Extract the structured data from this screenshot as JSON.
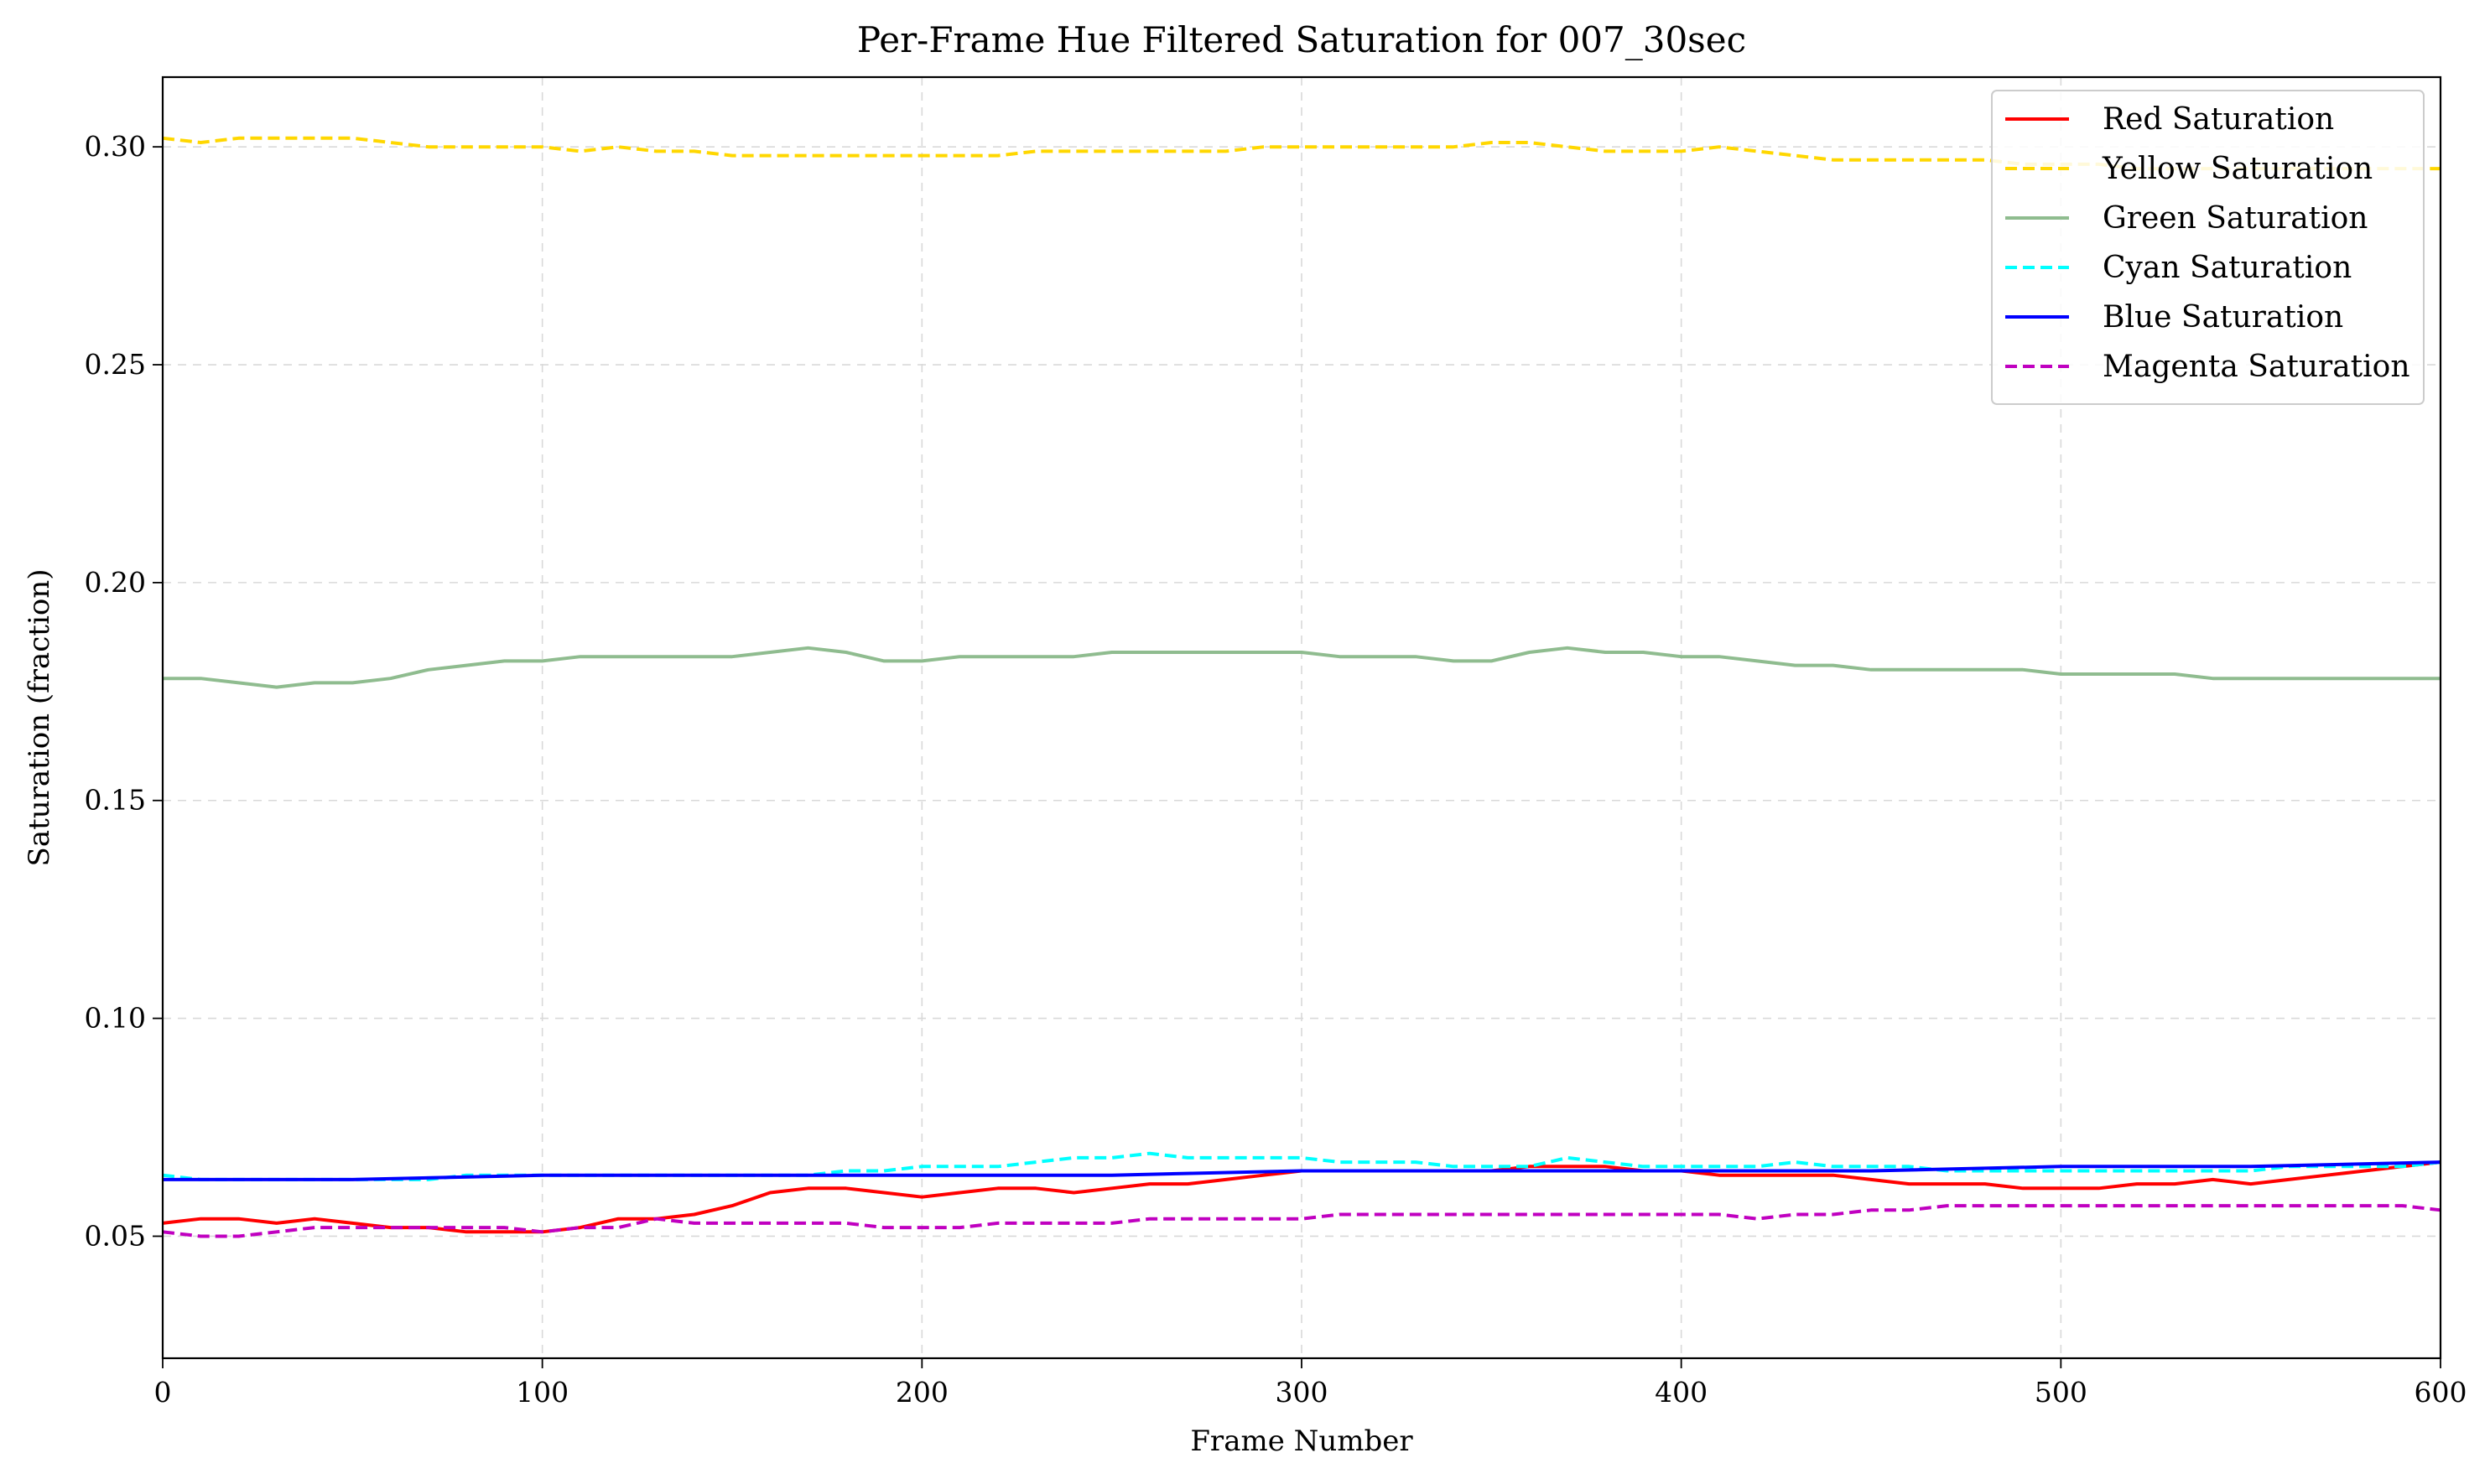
{
  "chart_data": {
    "type": "line",
    "title": "Per-Frame Hue Filtered Saturation for 007_30sec",
    "xlabel": "Frame Number",
    "ylabel": "Saturation (fraction)",
    "xlim": [
      0,
      600
    ],
    "ylim": [
      0.022,
      0.316
    ],
    "xticks": [
      0,
      100,
      200,
      300,
      400,
      500,
      600
    ],
    "yticks": [
      0.05,
      0.1,
      0.15,
      0.2,
      0.25,
      0.3
    ],
    "ytick_labels": [
      "0.05",
      "0.10",
      "0.15",
      "0.20",
      "0.25",
      "0.30"
    ],
    "grid": true,
    "legend_position": "top-right",
    "series": [
      {
        "name": "Red Saturation",
        "color": "#ff0000",
        "dash": "solid",
        "x": [
          0,
          10,
          20,
          30,
          40,
          50,
          60,
          70,
          80,
          90,
          100,
          110,
          120,
          130,
          140,
          150,
          160,
          170,
          180,
          190,
          200,
          210,
          220,
          230,
          240,
          250,
          260,
          270,
          280,
          290,
          300,
          310,
          320,
          330,
          340,
          350,
          360,
          370,
          380,
          390,
          400,
          410,
          420,
          430,
          440,
          450,
          460,
          470,
          480,
          490,
          500,
          510,
          520,
          530,
          540,
          550,
          560,
          570,
          580,
          590,
          600
        ],
        "y": [
          0.053,
          0.054,
          0.054,
          0.053,
          0.054,
          0.053,
          0.052,
          0.052,
          0.051,
          0.051,
          0.051,
          0.052,
          0.054,
          0.054,
          0.055,
          0.057,
          0.06,
          0.061,
          0.061,
          0.06,
          0.059,
          0.06,
          0.061,
          0.061,
          0.06,
          0.061,
          0.062,
          0.062,
          0.063,
          0.064,
          0.065,
          0.065,
          0.065,
          0.065,
          0.065,
          0.065,
          0.066,
          0.066,
          0.066,
          0.065,
          0.065,
          0.064,
          0.064,
          0.064,
          0.064,
          0.063,
          0.062,
          0.062,
          0.062,
          0.061,
          0.061,
          0.061,
          0.062,
          0.062,
          0.063,
          0.062,
          0.063,
          0.064,
          0.065,
          0.066,
          0.067
        ]
      },
      {
        "name": "Yellow Saturation",
        "color": "#ffd700",
        "dash": "dashed",
        "x": [
          0,
          10,
          20,
          30,
          40,
          50,
          60,
          70,
          80,
          90,
          100,
          110,
          120,
          130,
          140,
          150,
          160,
          170,
          180,
          190,
          200,
          210,
          220,
          230,
          240,
          250,
          260,
          270,
          280,
          290,
          300,
          310,
          320,
          330,
          340,
          350,
          360,
          370,
          380,
          390,
          400,
          410,
          420,
          430,
          440,
          450,
          460,
          470,
          480,
          490,
          500,
          510,
          520,
          530,
          540,
          550,
          560,
          570,
          580,
          590,
          600
        ],
        "y": [
          0.302,
          0.301,
          0.302,
          0.302,
          0.302,
          0.302,
          0.301,
          0.3,
          0.3,
          0.3,
          0.3,
          0.299,
          0.3,
          0.299,
          0.299,
          0.298,
          0.298,
          0.298,
          0.298,
          0.298,
          0.298,
          0.298,
          0.298,
          0.299,
          0.299,
          0.299,
          0.299,
          0.299,
          0.299,
          0.3,
          0.3,
          0.3,
          0.3,
          0.3,
          0.3,
          0.301,
          0.301,
          0.3,
          0.299,
          0.299,
          0.299,
          0.3,
          0.299,
          0.298,
          0.297,
          0.297,
          0.297,
          0.297,
          0.297,
          0.296,
          0.296,
          0.296,
          0.295,
          0.295,
          0.295,
          0.295,
          0.295,
          0.295,
          0.295,
          0.295,
          0.295
        ]
      },
      {
        "name": "Green Saturation",
        "color": "#8fbc8f",
        "dash": "solid",
        "x": [
          0,
          10,
          20,
          30,
          40,
          50,
          60,
          70,
          80,
          90,
          100,
          110,
          120,
          130,
          140,
          150,
          160,
          170,
          180,
          190,
          200,
          210,
          220,
          230,
          240,
          250,
          260,
          270,
          280,
          290,
          300,
          310,
          320,
          330,
          340,
          350,
          360,
          370,
          380,
          390,
          400,
          410,
          420,
          430,
          440,
          450,
          460,
          470,
          480,
          490,
          500,
          510,
          520,
          530,
          540,
          550,
          560,
          570,
          580,
          590,
          600
        ],
        "y": [
          0.178,
          0.178,
          0.177,
          0.176,
          0.177,
          0.177,
          0.178,
          0.18,
          0.181,
          0.182,
          0.182,
          0.183,
          0.183,
          0.183,
          0.183,
          0.183,
          0.184,
          0.185,
          0.184,
          0.182,
          0.182,
          0.183,
          0.183,
          0.183,
          0.183,
          0.184,
          0.184,
          0.184,
          0.184,
          0.184,
          0.184,
          0.183,
          0.183,
          0.183,
          0.182,
          0.182,
          0.184,
          0.185,
          0.184,
          0.184,
          0.183,
          0.183,
          0.182,
          0.181,
          0.181,
          0.18,
          0.18,
          0.18,
          0.18,
          0.18,
          0.179,
          0.179,
          0.179,
          0.179,
          0.178,
          0.178,
          0.178,
          0.178,
          0.178,
          0.178,
          0.178
        ]
      },
      {
        "name": "Cyan Saturation",
        "color": "#00ffff",
        "dash": "dashed",
        "x": [
          0,
          10,
          20,
          30,
          40,
          50,
          60,
          70,
          80,
          90,
          100,
          110,
          120,
          130,
          140,
          150,
          160,
          170,
          180,
          190,
          200,
          210,
          220,
          230,
          240,
          250,
          260,
          270,
          280,
          290,
          300,
          310,
          320,
          330,
          340,
          350,
          360,
          370,
          380,
          390,
          400,
          410,
          420,
          430,
          440,
          450,
          460,
          470,
          480,
          490,
          500,
          510,
          520,
          530,
          540,
          550,
          560,
          570,
          580,
          590,
          600
        ],
        "y": [
          0.064,
          0.063,
          0.063,
          0.063,
          0.063,
          0.063,
          0.063,
          0.063,
          0.064,
          0.064,
          0.064,
          0.064,
          0.064,
          0.064,
          0.064,
          0.064,
          0.064,
          0.064,
          0.065,
          0.065,
          0.066,
          0.066,
          0.066,
          0.067,
          0.068,
          0.068,
          0.069,
          0.068,
          0.068,
          0.068,
          0.068,
          0.067,
          0.067,
          0.067,
          0.066,
          0.066,
          0.066,
          0.068,
          0.067,
          0.066,
          0.066,
          0.066,
          0.066,
          0.067,
          0.066,
          0.066,
          0.066,
          0.065,
          0.065,
          0.065,
          0.065,
          0.065,
          0.065,
          0.065,
          0.065,
          0.065,
          0.066,
          0.066,
          0.066,
          0.066,
          0.067
        ]
      },
      {
        "name": "Blue Saturation",
        "color": "#0000ff",
        "dash": "solid",
        "x": [
          0,
          50,
          100,
          150,
          200,
          250,
          300,
          350,
          400,
          450,
          500,
          550,
          600
        ],
        "y": [
          0.063,
          0.063,
          0.064,
          0.064,
          0.064,
          0.064,
          0.065,
          0.065,
          0.065,
          0.065,
          0.066,
          0.066,
          0.067
        ]
      },
      {
        "name": "Magenta Saturation",
        "color": "#c000c0",
        "dash": "dashed",
        "x": [
          0,
          10,
          20,
          30,
          40,
          50,
          60,
          70,
          80,
          90,
          100,
          110,
          120,
          130,
          140,
          150,
          160,
          170,
          180,
          190,
          200,
          210,
          220,
          230,
          240,
          250,
          260,
          270,
          280,
          290,
          300,
          310,
          320,
          330,
          340,
          350,
          360,
          370,
          380,
          390,
          400,
          410,
          420,
          430,
          440,
          450,
          460,
          470,
          480,
          490,
          500,
          510,
          520,
          530,
          540,
          550,
          560,
          570,
          580,
          590,
          600
        ],
        "y": [
          0.051,
          0.05,
          0.05,
          0.051,
          0.052,
          0.052,
          0.052,
          0.052,
          0.052,
          0.052,
          0.051,
          0.052,
          0.052,
          0.054,
          0.053,
          0.053,
          0.053,
          0.053,
          0.053,
          0.052,
          0.052,
          0.052,
          0.053,
          0.053,
          0.053,
          0.053,
          0.054,
          0.054,
          0.054,
          0.054,
          0.054,
          0.055,
          0.055,
          0.055,
          0.055,
          0.055,
          0.055,
          0.055,
          0.055,
          0.055,
          0.055,
          0.055,
          0.054,
          0.055,
          0.055,
          0.056,
          0.056,
          0.057,
          0.057,
          0.057,
          0.057,
          0.057,
          0.057,
          0.057,
          0.057,
          0.057,
          0.057,
          0.057,
          0.057,
          0.057,
          0.056
        ]
      }
    ]
  }
}
